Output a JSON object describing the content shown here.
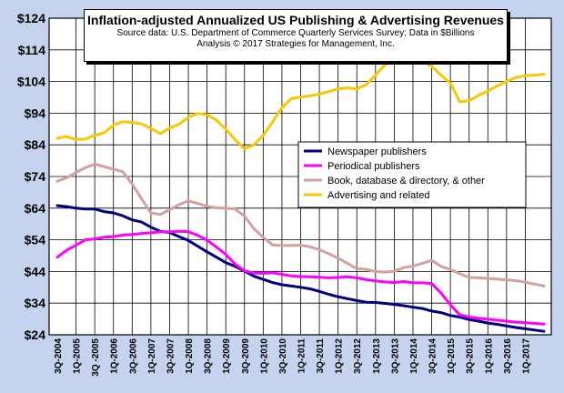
{
  "chart_data": {
    "type": "line",
    "title": "Inflation-adjusted Annualized US Publishing & Advertising Revenues",
    "subtitle_lines": [
      "Source data: U.S. Department of Commerce Quarterly Services Survey; Data in $Billions",
      "Analysis © 2017 Strategies for Management, Inc."
    ],
    "ylim": [
      24,
      124
    ],
    "y_ticks": [
      {
        "value": 24,
        "label": "$24"
      },
      {
        "value": 34,
        "label": "$34"
      },
      {
        "value": 44,
        "label": "$44"
      },
      {
        "value": 54,
        "label": "$54"
      },
      {
        "value": 64,
        "label": "$64"
      },
      {
        "value": 74,
        "label": "$74"
      },
      {
        "value": 84,
        "label": "$84"
      },
      {
        "value": 94,
        "label": "$94"
      },
      {
        "value": 104,
        "label": "$104"
      },
      {
        "value": 114,
        "label": "$114"
      },
      {
        "value": 124,
        "label": "$124"
      }
    ],
    "x_labels": [
      "3Q-2004",
      "1Q-2005",
      "3Q -2005",
      "1Q-2006",
      "3Q-2006",
      "1Q-2007",
      "3Q-2007",
      "1Q-2008",
      "3Q-2008",
      "1Q-2009",
      "3Q-2009",
      "1Q-2010",
      "3Q-2010",
      "1Q-2011",
      "3Q-2011",
      "1Q-2012",
      "3Q-2012",
      "1Q-2013",
      "3Q-2013",
      "1Q-2014",
      "3Q-2014",
      "1Q-2015",
      "3Q-2015",
      "1Q-2016",
      "3Q-2016",
      "1Q-2017"
    ],
    "x_labels_start_quarter": "3Q-2004",
    "x_labels_every_n_quarters": 2,
    "grid": true,
    "legend_position": "center-right",
    "series": [
      {
        "name": "Newspaper publishers",
        "color": "#000080",
        "values": [
          64.8,
          64.5,
          64.0,
          63.7,
          63.7,
          62.9,
          62.5,
          61.6,
          60.3,
          59.6,
          58.0,
          56.7,
          56.3,
          55.0,
          53.8,
          52.0,
          50.2,
          48.5,
          46.8,
          45.6,
          44.1,
          42.5,
          41.5,
          40.5,
          39.8,
          39.4,
          39.0,
          38.5,
          37.7,
          36.8,
          36.0,
          35.4,
          34.8,
          34.3,
          34.2,
          33.9,
          33.6,
          33.2,
          32.7,
          32.3,
          31.5,
          31.0,
          30.1,
          29.6,
          28.8,
          28.3,
          27.7,
          27.3,
          26.8,
          26.3,
          25.9,
          25.5,
          25.1
        ]
      },
      {
        "name": "Periodical publishers",
        "color": "#ff00ff",
        "values": [
          48.5,
          50.7,
          52.3,
          54.0,
          54.3,
          54.8,
          55.0,
          55.5,
          55.7,
          56.0,
          56.2,
          56.5,
          56.5,
          56.7,
          56.6,
          55.4,
          53.9,
          51.7,
          49.4,
          46.3,
          44.2,
          43.5,
          43.4,
          43.6,
          43.1,
          42.6,
          42.4,
          42.3,
          42.2,
          42.0,
          42.1,
          42.3,
          42.0,
          41.4,
          41.0,
          40.7,
          40.5,
          40.8,
          40.4,
          40.4,
          40.2,
          37.2,
          33.5,
          30.3,
          29.6,
          29.2,
          28.9,
          28.6,
          28.3,
          28.0,
          27.8,
          27.6,
          27.4
        ]
      },
      {
        "name": "Book, database & directory, & other",
        "color": "#d4a0a0",
        "values": [
          72.5,
          73.6,
          75.3,
          76.8,
          77.9,
          77.1,
          76.3,
          75.5,
          71.6,
          67.0,
          62.5,
          62.0,
          63.5,
          65.1,
          66.3,
          65.5,
          64.6,
          64.1,
          64.0,
          63.7,
          61.5,
          57.5,
          54.8,
          52.4,
          52.2,
          52.2,
          52.3,
          51.8,
          50.9,
          49.6,
          48.2,
          46.6,
          44.9,
          44.7,
          44.0,
          43.8,
          44.1,
          45.2,
          45.7,
          46.6,
          47.5,
          45.6,
          44.6,
          43.3,
          42.1,
          42.0,
          41.8,
          41.6,
          41.3,
          41.1,
          40.6,
          40.0,
          39.4
        ]
      },
      {
        "name": "Advertising and related",
        "color": "#f8c800",
        "values": [
          86.1,
          86.6,
          85.7,
          85.8,
          87.0,
          87.8,
          90.2,
          91.3,
          91.1,
          90.6,
          89.2,
          87.5,
          89.3,
          90.5,
          92.7,
          93.9,
          93.5,
          91.8,
          89.0,
          85.6,
          82.7,
          84.0,
          87.0,
          91.2,
          95.7,
          98.6,
          99.1,
          99.5,
          100.0,
          100.8,
          101.7,
          102.0,
          101.7,
          103.0,
          106.0,
          109.3,
          110.7,
          110.0,
          110.0,
          110.5,
          108.8,
          106.0,
          103.5,
          97.6,
          97.9,
          99.6,
          101.0,
          102.6,
          104.0,
          105.3,
          105.8,
          106.0,
          106.3
        ]
      }
    ]
  }
}
